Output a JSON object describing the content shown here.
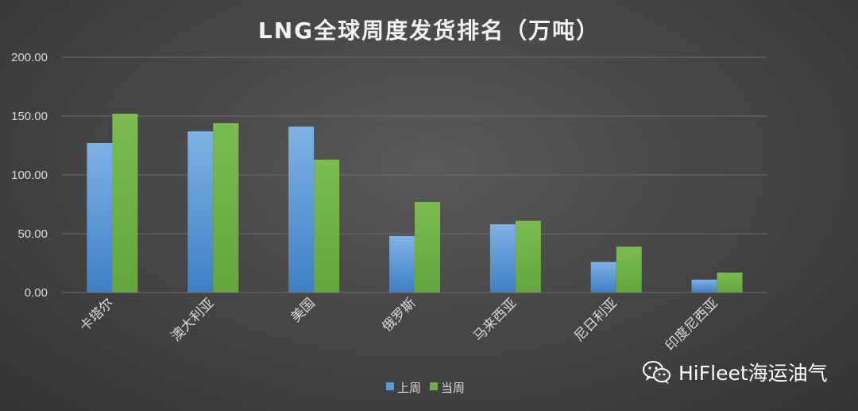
{
  "chart_data": {
    "type": "bar",
    "title": "LNG全球周度发货排名（万吨）",
    "categories": [
      "卡塔尔",
      "澳大利亚",
      "美国",
      "俄罗斯",
      "马来西亚",
      "尼日利亚",
      "印度尼西亚"
    ],
    "series": [
      {
        "name": "上周",
        "values": [
          127,
          137,
          141,
          48,
          58,
          26,
          11
        ],
        "color": "#5b9bd5"
      },
      {
        "name": "当周",
        "values": [
          152,
          144,
          113,
          77,
          61,
          39,
          17
        ],
        "color": "#70ad47"
      }
    ],
    "ylim": [
      0,
      200
    ],
    "yticks": [
      "0.00",
      "50.00",
      "100.00",
      "150.00",
      "200.00"
    ],
    "grid": true,
    "legend_position": "bottom"
  },
  "watermark": {
    "text": "HiFleet海运油气",
    "icon": "wechat-icon"
  }
}
